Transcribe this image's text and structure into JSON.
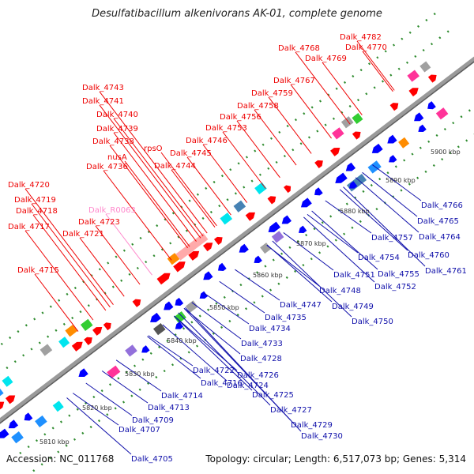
{
  "title": "Desulfatibacillum alkenivorans AK-01, complete genome",
  "accession": "Accession: NC_011768",
  "topology": "Topology: circular; Length: 6,517,073 bp; Genes: 5,314",
  "colors": {
    "forward_gene": "#ff0000",
    "reverse_gene": "#0000ff",
    "rna_gene": "#ff88cc",
    "backbone": "#888888",
    "tick_dot": "#2e8b2e"
  },
  "ticks": [
    {
      "label": "5810 kbp"
    },
    {
      "label": "5820 kbp"
    },
    {
      "label": "5830 kbp"
    },
    {
      "label": "5840 kbp"
    },
    {
      "label": "5850 kbp"
    },
    {
      "label": "5860 kbp"
    },
    {
      "label": "5870 kbp"
    },
    {
      "label": "5880 kbp"
    },
    {
      "label": "5890 kbp"
    },
    {
      "label": "5900 kbp"
    }
  ],
  "forward_labels": [
    "Dalk_4782",
    "Dalk_4770",
    "Dalk_4768",
    "Dalk_4769",
    "Dalk_4767",
    "Dalk_4759",
    "Dalk_4758",
    "Dalk_4756",
    "Dalk_4753",
    "Dalk_4746",
    "Dalk_4745",
    "Dalk_4744",
    "rpsO",
    "Dalk_4743",
    "Dalk_4741",
    "Dalk_4740",
    "Dalk_4739",
    "Dalk_4738",
    "nusA",
    "Dalk_4736",
    "Dalk_4720",
    "Dalk_4719",
    "Dalk_4718",
    "Dalk_4723",
    "Dalk_4717",
    "Dalk_4721",
    "Dalk_4715"
  ],
  "rna_labels": [
    "Dalk_R0063"
  ],
  "reverse_labels": [
    "Dalk_4766",
    "Dalk_4765",
    "Dalk_4764",
    "Dalk_4757",
    "Dalk_4760",
    "Dalk_4761",
    "Dalk_4754",
    "Dalk_4755",
    "Dalk_4751",
    "Dalk_4752",
    "Dalk_4748",
    "Dalk_4747",
    "Dalk_4749",
    "Dalk_4735",
    "Dalk_4750",
    "Dalk_4734",
    "Dalk_4733",
    "Dalk_4728",
    "Dalk_4722",
    "Dalk_4726",
    "Dalk_4716",
    "Dalk_4724",
    "Dalk_4714",
    "Dalk_4725",
    "Dalk_4713",
    "Dalk_4727",
    "Dalk_4709",
    "Dalk_4729",
    "Dalk_4707",
    "Dalk_4730",
    "Dalk_4705"
  ]
}
